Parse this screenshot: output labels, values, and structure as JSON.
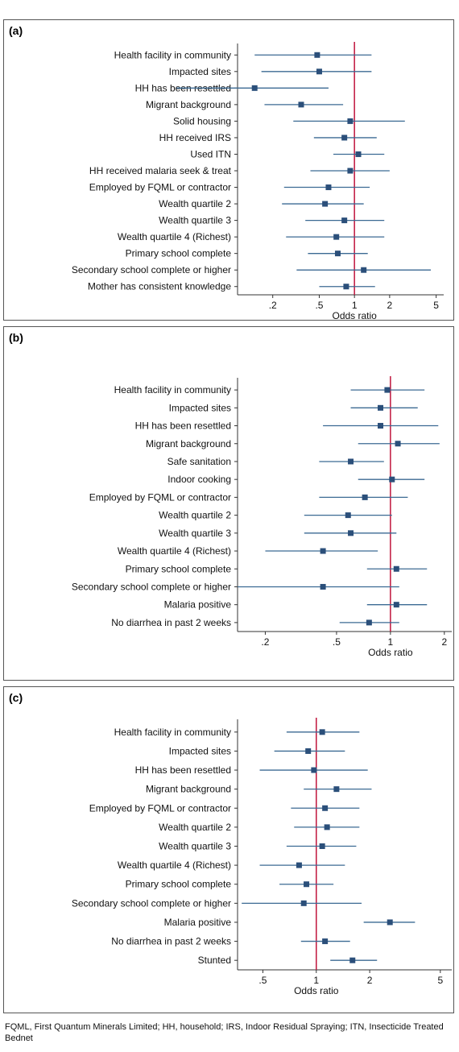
{
  "chart_data": [
    {
      "panel": "(a)",
      "type": "scatter",
      "subtype": "forest-plot",
      "xlabel": "Odds ratio",
      "xscale": "log",
      "xlim": [
        0.1,
        5.8
      ],
      "xticks": [
        0.2,
        0.5,
        1,
        2,
        5
      ],
      "xticklabels": [
        ".2",
        ".5",
        "1",
        "2",
        "5"
      ],
      "reference_line": 1,
      "rows": [
        {
          "label": "Health facility in community",
          "or": 0.48,
          "lo": 0.14,
          "hi": 1.4
        },
        {
          "label": "Impacted sites",
          "or": 0.5,
          "lo": 0.16,
          "hi": 1.4
        },
        {
          "label": "HH has been resettled",
          "or": 0.14,
          "lo": 0.03,
          "hi": 0.6
        },
        {
          "label": "Migrant background",
          "or": 0.35,
          "lo": 0.17,
          "hi": 0.8
        },
        {
          "label": "Solid housing",
          "or": 0.92,
          "lo": 0.3,
          "hi": 2.7
        },
        {
          "label": "HH received IRS",
          "or": 0.82,
          "lo": 0.45,
          "hi": 1.55
        },
        {
          "label": "Used ITN",
          "or": 1.08,
          "lo": 0.66,
          "hi": 1.8
        },
        {
          "label": "HH received malaria seek & treat",
          "or": 0.92,
          "lo": 0.42,
          "hi": 2.0
        },
        {
          "label": "Employed by FQML or contractor",
          "or": 0.6,
          "lo": 0.25,
          "hi": 1.35
        },
        {
          "label": "Wealth quartile 2",
          "or": 0.56,
          "lo": 0.24,
          "hi": 1.2
        },
        {
          "label": "Wealth quartile 3",
          "or": 0.82,
          "lo": 0.38,
          "hi": 1.8
        },
        {
          "label": "Wealth quartile 4 (Richest)",
          "or": 0.7,
          "lo": 0.26,
          "hi": 1.8
        },
        {
          "label": "Primary school complete",
          "or": 0.72,
          "lo": 0.4,
          "hi": 1.3
        },
        {
          "label": "Secondary school complete or higher",
          "or": 1.2,
          "lo": 0.32,
          "hi": 4.5
        },
        {
          "label": "Mother has consistent knowledge",
          "or": 0.85,
          "lo": 0.5,
          "hi": 1.5
        }
      ]
    },
    {
      "panel": "(b)",
      "type": "scatter",
      "subtype": "forest-plot",
      "xlabel": "Odds ratio",
      "xscale": "log",
      "xlim": [
        0.14,
        2.2
      ],
      "xticks": [
        0.2,
        0.5,
        1,
        2
      ],
      "xticklabels": [
        ".2",
        ".5",
        "1",
        "2"
      ],
      "reference_line": 1,
      "rows": [
        {
          "label": "Health facility in community",
          "or": 0.96,
          "lo": 0.6,
          "hi": 1.55
        },
        {
          "label": "Impacted sites",
          "or": 0.88,
          "lo": 0.6,
          "hi": 1.42
        },
        {
          "label": "HH has been resettled",
          "or": 0.88,
          "lo": 0.42,
          "hi": 1.85
        },
        {
          "label": "Migrant background",
          "or": 1.1,
          "lo": 0.66,
          "hi": 1.88
        },
        {
          "label": "Safe sanitation",
          "or": 0.6,
          "lo": 0.4,
          "hi": 0.92
        },
        {
          "label": "Indoor cooking",
          "or": 1.02,
          "lo": 0.66,
          "hi": 1.55
        },
        {
          "label": "Employed by FQML or contractor",
          "or": 0.72,
          "lo": 0.4,
          "hi": 1.25
        },
        {
          "label": "Wealth quartile 2",
          "or": 0.58,
          "lo": 0.33,
          "hi": 1.02
        },
        {
          "label": "Wealth quartile 3",
          "or": 0.6,
          "lo": 0.33,
          "hi": 1.08
        },
        {
          "label": "Wealth quartile 4 (Richest)",
          "or": 0.42,
          "lo": 0.2,
          "hi": 0.85
        },
        {
          "label": "Primary school complete",
          "or": 1.08,
          "lo": 0.74,
          "hi": 1.6
        },
        {
          "label": "Secondary school complete or higher",
          "or": 0.42,
          "lo": 0.14,
          "hi": 1.12
        },
        {
          "label": "Malaria positive",
          "or": 1.08,
          "lo": 0.74,
          "hi": 1.6
        },
        {
          "label": "No diarrhea in past 2 weeks",
          "or": 0.76,
          "lo": 0.52,
          "hi": 1.12
        }
      ]
    },
    {
      "panel": "(c)",
      "type": "scatter",
      "subtype": "forest-plot",
      "xlabel": "Odds ratio",
      "xscale": "log",
      "xlim": [
        0.36,
        5.8
      ],
      "xticks": [
        0.5,
        1,
        2,
        5
      ],
      "xticklabels": [
        ".5",
        "1",
        "2",
        "5"
      ],
      "reference_line": 1,
      "rows": [
        {
          "label": "Health facility in community",
          "or": 1.08,
          "lo": 0.68,
          "hi": 1.75
        },
        {
          "label": "Impacted sites",
          "or": 0.9,
          "lo": 0.58,
          "hi": 1.45
        },
        {
          "label": "HH has been resettled",
          "or": 0.97,
          "lo": 0.48,
          "hi": 1.95
        },
        {
          "label": "Migrant background",
          "or": 1.3,
          "lo": 0.85,
          "hi": 2.05
        },
        {
          "label": "Employed by FQML or contractor",
          "or": 1.12,
          "lo": 0.72,
          "hi": 1.75
        },
        {
          "label": "Wealth quartile 2",
          "or": 1.15,
          "lo": 0.75,
          "hi": 1.75
        },
        {
          "label": "Wealth quartile 3",
          "or": 1.08,
          "lo": 0.68,
          "hi": 1.68
        },
        {
          "label": "Wealth quartile 4 (Richest)",
          "or": 0.8,
          "lo": 0.48,
          "hi": 1.45
        },
        {
          "label": "Primary school complete",
          "or": 0.88,
          "lo": 0.62,
          "hi": 1.25
        },
        {
          "label": "Secondary school complete or higher",
          "or": 0.85,
          "lo": 0.38,
          "hi": 1.8
        },
        {
          "label": "Malaria positive",
          "or": 2.6,
          "lo": 1.85,
          "hi": 3.6
        },
        {
          "label": "No diarrhea in past 2 weeks",
          "or": 1.12,
          "lo": 0.82,
          "hi": 1.55
        },
        {
          "label": "Stunted",
          "or": 1.6,
          "lo": 1.2,
          "hi": 2.2
        }
      ]
    }
  ],
  "colors": {
    "marker": "#2b4f7a",
    "ci_line": "#3b6a93",
    "reference": "#c0143c",
    "axis": "#333333"
  },
  "footnote": "FQML, First Quantum Minerals Limited; HH, household; IRS, Indoor Residual Spraying; ITN, Insecticide Treated Bednet"
}
